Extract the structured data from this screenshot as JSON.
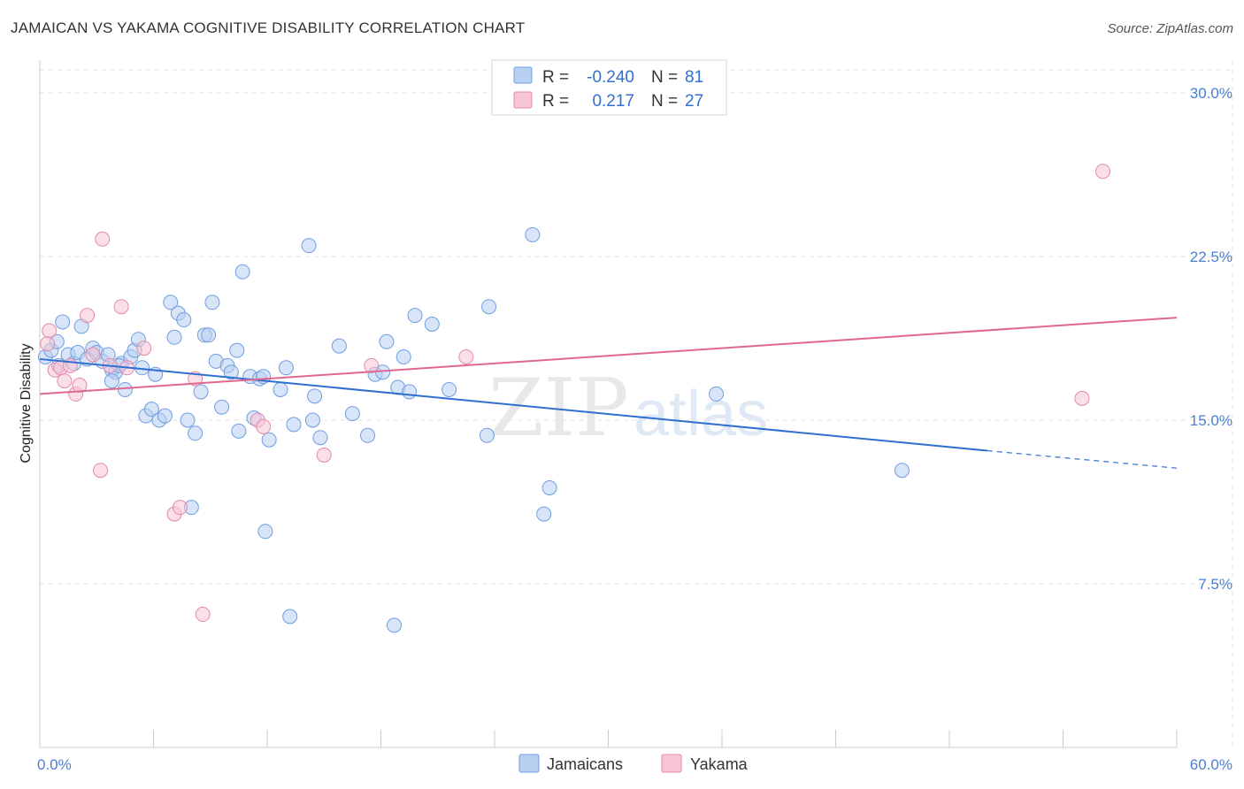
{
  "title": "JAMAICAN VS YAKAMA COGNITIVE DISABILITY CORRELATION CHART",
  "source": "Source: ZipAtlas.com",
  "watermark": {
    "zip": "ZIP",
    "atlas": "atlas"
  },
  "colors": {
    "jamaican_fill": "#b8d0f2",
    "jamaican_stroke": "#6f9de0",
    "jamaican_line": "#2f6fd0",
    "yakama_fill": "#f8c5d4",
    "yakama_stroke": "#e38aa8",
    "yakama_line": "#e06890",
    "grid": "#e2e2e2",
    "tick_text": "#4a7fd4"
  },
  "legend_box": {
    "rows": [
      {
        "r_label": "R =",
        "r_value": "-0.240",
        "n_label": "N =",
        "n_value": "81"
      },
      {
        "r_label": "R =",
        "r_value": "0.217",
        "n_label": "N =",
        "n_value": "27"
      }
    ]
  },
  "chart_data": {
    "type": "scatter",
    "ylabel": "Cognitive Disability",
    "xlim": [
      0,
      60
    ],
    "ylim": [
      0,
      31.5
    ],
    "x_tick_labels": [
      {
        "value": 0,
        "label": "0.0%"
      },
      {
        "value": 60,
        "label": "60.0%"
      }
    ],
    "y_tick_labels": [
      {
        "value": 7.5,
        "label": "7.5%"
      },
      {
        "value": 15,
        "label": "15.0%"
      },
      {
        "value": 22.5,
        "label": "22.5%"
      },
      {
        "value": 30,
        "label": "30.0%"
      }
    ],
    "x_minor_ticks": [
      0,
      6,
      12,
      18,
      24,
      30,
      36,
      42,
      48,
      54,
      60
    ],
    "grid": true,
    "legend_placement": "top-center",
    "series": [
      {
        "name": "Jamaicans",
        "r": -0.24,
        "n": 81,
        "trend": {
          "x0": 0,
          "y0": 17.8,
          "x1": 50,
          "y1": 13.6,
          "dash_x1": 60,
          "dash_y1": 12.8
        },
        "points": [
          [
            0.3,
            17.9
          ],
          [
            0.6,
            18.2
          ],
          [
            0.9,
            18.6
          ],
          [
            1.0,
            17.5
          ],
          [
            1.2,
            19.5
          ],
          [
            1.5,
            18.0
          ],
          [
            1.8,
            17.6
          ],
          [
            2.0,
            18.1
          ],
          [
            2.2,
            19.3
          ],
          [
            2.5,
            17.8
          ],
          [
            2.8,
            18.3
          ],
          [
            3.0,
            18.1
          ],
          [
            3.3,
            17.7
          ],
          [
            3.6,
            18.0
          ],
          [
            3.8,
            17.3
          ],
          [
            4.0,
            17.2
          ],
          [
            4.3,
            17.6
          ],
          [
            3.8,
            16.8
          ],
          [
            4.2,
            17.5
          ],
          [
            4.5,
            16.4
          ],
          [
            4.8,
            17.9
          ],
          [
            5.0,
            18.2
          ],
          [
            5.2,
            18.7
          ],
          [
            5.4,
            17.4
          ],
          [
            5.6,
            15.2
          ],
          [
            5.9,
            15.5
          ],
          [
            6.1,
            17.1
          ],
          [
            6.3,
            15.0
          ],
          [
            6.6,
            15.2
          ],
          [
            6.9,
            20.4
          ],
          [
            7.1,
            18.8
          ],
          [
            7.3,
            19.9
          ],
          [
            7.6,
            19.6
          ],
          [
            7.8,
            15.0
          ],
          [
            8.0,
            11.0
          ],
          [
            8.2,
            14.4
          ],
          [
            8.5,
            16.3
          ],
          [
            8.7,
            18.9
          ],
          [
            8.9,
            18.9
          ],
          [
            9.1,
            20.4
          ],
          [
            9.3,
            17.7
          ],
          [
            9.6,
            15.6
          ],
          [
            9.9,
            17.5
          ],
          [
            10.1,
            17.2
          ],
          [
            10.4,
            18.2
          ],
          [
            10.5,
            14.5
          ],
          [
            10.7,
            21.8
          ],
          [
            11.1,
            17.0
          ],
          [
            11.3,
            15.1
          ],
          [
            11.6,
            16.9
          ],
          [
            11.8,
            17.0
          ],
          [
            11.9,
            9.9
          ],
          [
            12.1,
            14.1
          ],
          [
            12.7,
            16.4
          ],
          [
            13.0,
            17.4
          ],
          [
            13.2,
            6.0
          ],
          [
            13.4,
            14.8
          ],
          [
            14.2,
            23.0
          ],
          [
            14.5,
            16.1
          ],
          [
            14.4,
            15.0
          ],
          [
            14.8,
            14.2
          ],
          [
            15.8,
            18.4
          ],
          [
            16.5,
            15.3
          ],
          [
            17.3,
            14.3
          ],
          [
            17.7,
            17.1
          ],
          [
            18.1,
            17.2
          ],
          [
            18.3,
            18.6
          ],
          [
            18.9,
            16.5
          ],
          [
            18.7,
            5.6
          ],
          [
            19.5,
            16.3
          ],
          [
            19.8,
            19.8
          ],
          [
            19.2,
            17.9
          ],
          [
            20.7,
            19.4
          ],
          [
            21.6,
            16.4
          ],
          [
            23.6,
            14.3
          ],
          [
            23.7,
            20.2
          ],
          [
            26.0,
            23.5
          ],
          [
            26.6,
            10.7
          ],
          [
            26.9,
            11.9
          ],
          [
            35.7,
            16.2
          ],
          [
            45.5,
            12.7
          ]
        ]
      },
      {
        "name": "Yakama",
        "r": 0.217,
        "n": 27,
        "trend": {
          "x0": 0,
          "y0": 16.2,
          "x1": 60,
          "y1": 19.7
        },
        "points": [
          [
            0.4,
            18.5
          ],
          [
            0.5,
            19.1
          ],
          [
            0.8,
            17.3
          ],
          [
            1.1,
            17.4
          ],
          [
            1.3,
            16.8
          ],
          [
            1.6,
            17.5
          ],
          [
            1.9,
            16.2
          ],
          [
            2.1,
            16.6
          ],
          [
            2.5,
            19.8
          ],
          [
            2.8,
            18.0
          ],
          [
            3.2,
            12.7
          ],
          [
            3.3,
            23.3
          ],
          [
            3.7,
            17.5
          ],
          [
            4.3,
            20.2
          ],
          [
            4.6,
            17.4
          ],
          [
            5.5,
            18.3
          ],
          [
            7.1,
            10.7
          ],
          [
            7.4,
            11.0
          ],
          [
            8.2,
            16.9
          ],
          [
            8.6,
            6.1
          ],
          [
            11.5,
            15.0
          ],
          [
            11.8,
            14.7
          ],
          [
            15.0,
            13.4
          ],
          [
            17.5,
            17.5
          ],
          [
            22.5,
            17.9
          ],
          [
            55.0,
            16.0
          ],
          [
            56.1,
            26.4
          ]
        ]
      }
    ]
  }
}
